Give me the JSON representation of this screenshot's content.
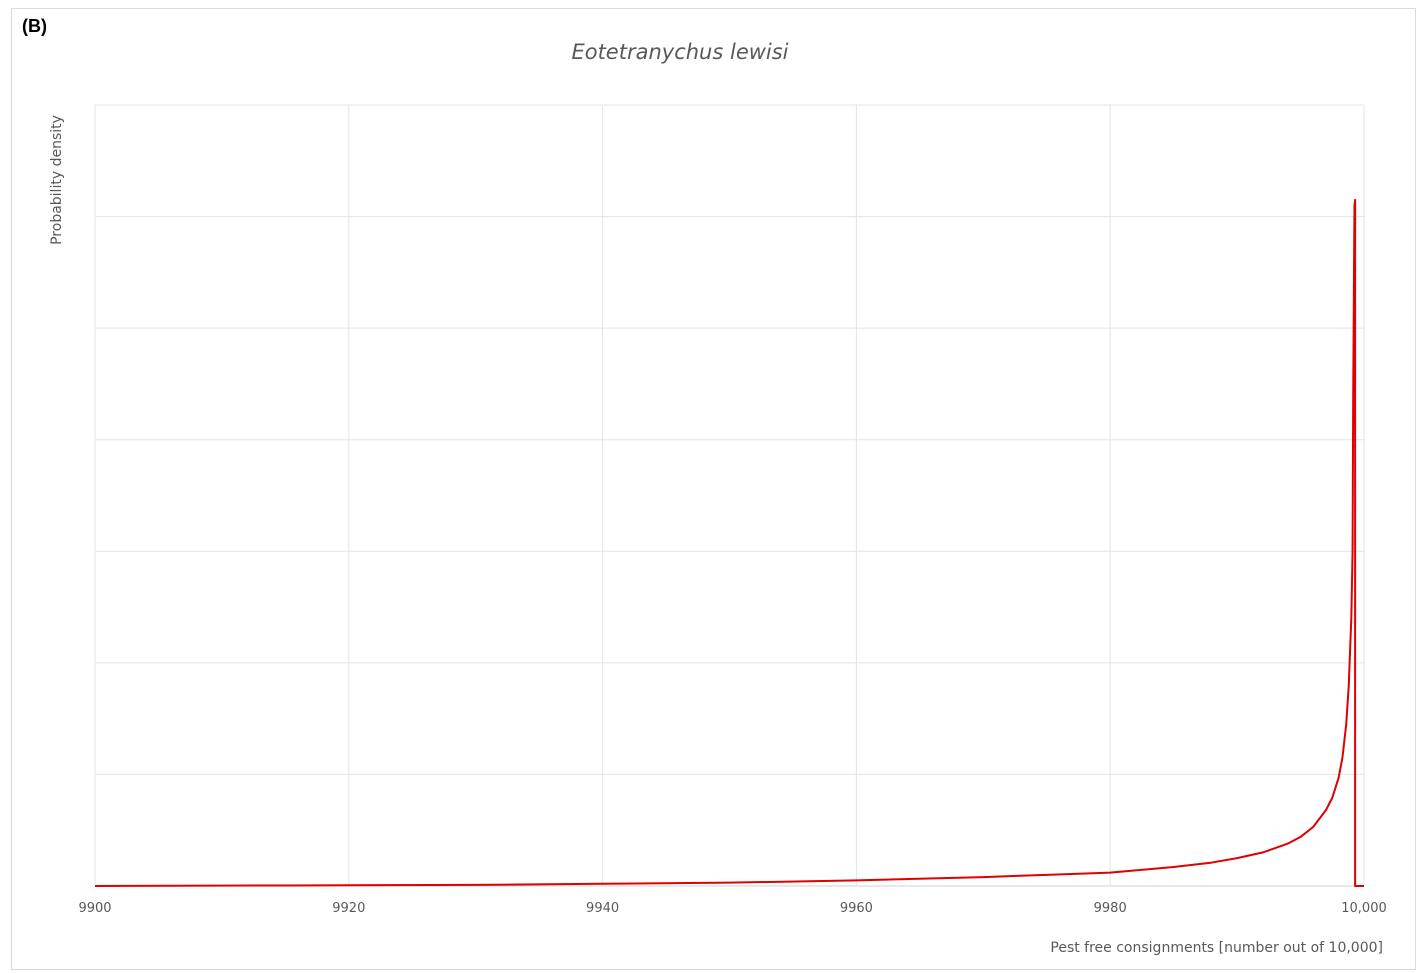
{
  "panel_label": "(B)",
  "chart_data": {
    "type": "line",
    "title": "Eotetranychus lewisi",
    "xlabel": "Pest free consignments [number out of 10,000]",
    "ylabel": "Probability density",
    "xlim": [
      9900,
      10000
    ],
    "ylim": [
      0,
      7
    ],
    "x_ticks": [
      9900,
      9920,
      9940,
      9960,
      9980,
      10000
    ],
    "x_tick_labels": [
      "9900",
      "9920",
      "9940",
      "9960",
      "9980",
      "10,000"
    ],
    "y_gridlines": [
      1,
      2,
      3,
      4,
      5,
      6,
      7
    ],
    "y_tick_labels_shown": false,
    "grid": true,
    "series": [
      {
        "color": "#e00000",
        "x": [
          9900,
          9915,
          9930,
          9940,
          9950,
          9960,
          9970,
          9975,
          9980,
          9985,
          9988,
          9990,
          9992,
          9994,
          9995,
          9996,
          9997,
          9997.5,
          9998,
          9998.3,
          9998.6,
          9998.8,
          9999,
          9999.1,
          9999.15,
          9999.2,
          9999.25,
          9999.3,
          9999.3,
          10000
        ],
        "y": [
          0.0,
          0.005,
          0.01,
          0.02,
          0.03,
          0.05,
          0.08,
          0.1,
          0.12,
          0.17,
          0.21,
          0.25,
          0.3,
          0.38,
          0.44,
          0.53,
          0.68,
          0.79,
          0.97,
          1.15,
          1.45,
          1.8,
          2.4,
          3.0,
          4.4,
          5.3,
          6.1,
          6.15,
          0.0,
          0.0
        ]
      }
    ]
  }
}
